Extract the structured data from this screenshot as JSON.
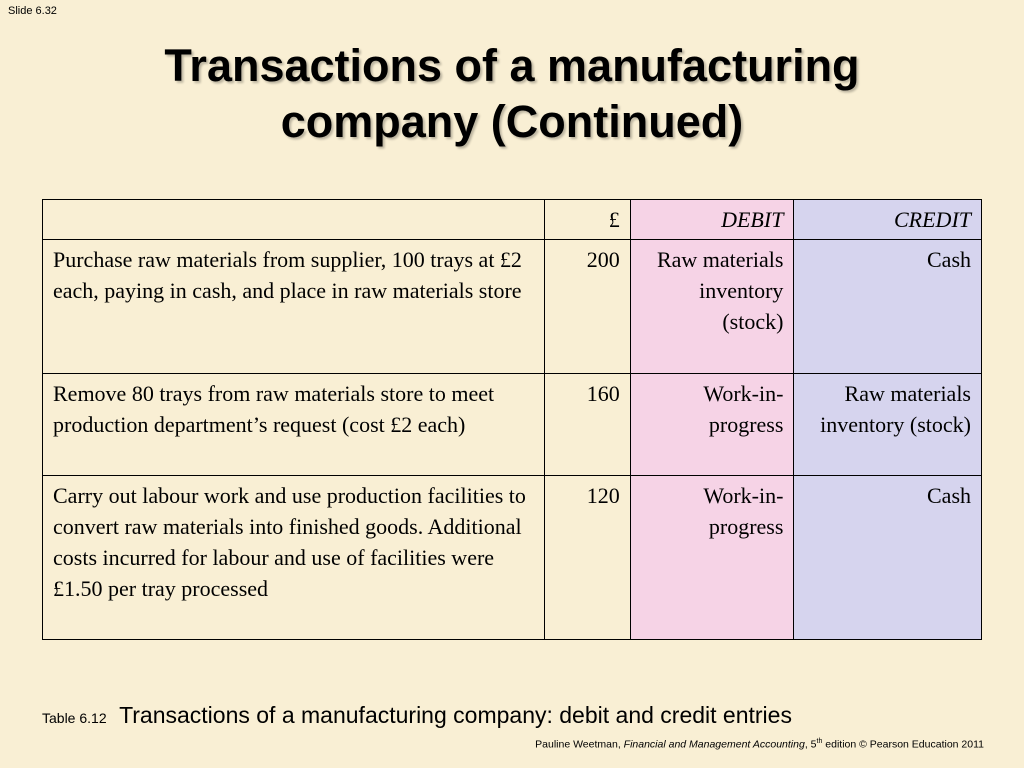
{
  "slide_number": "Slide 6.32",
  "title": {
    "line1": "Transactions of a manufacturing",
    "line2": "company (Continued)"
  },
  "table": {
    "headers": {
      "description": "",
      "amount": "£",
      "debit": "DEBIT",
      "credit": "CREDIT"
    },
    "rows": [
      {
        "description": "Purchase raw materials from supplier, 100 trays at £2 each,  paying in cash, and place in raw materials store",
        "amount": "200",
        "debit": "Raw materials inventory (stock)",
        "credit": "Cash"
      },
      {
        "description": "Remove 80 trays from raw materials store to meet production department’s request (cost £2 each)",
        "amount": "160",
        "debit": "Work-in-progress",
        "credit": "Raw materials inventory (stock)"
      },
      {
        "description": "Carry out labour work and use production facilities to convert raw materials into finished goods. Additional costs incurred for labour and use of facilities were £1.50 per tray processed",
        "amount": "120",
        "debit": "Work-in-progress",
        "credit": "Cash"
      }
    ]
  },
  "caption": {
    "label": "Table 6.12",
    "text": "Transactions of a manufacturing company: debit and credit entries"
  },
  "footer": {
    "author": "Pauline Weetman, ",
    "book": "Financial and Management Accounting",
    "edition_num": ", 5",
    "edition_sup": "th",
    "rest": " edition © Pearson Education 2011"
  },
  "colors": {
    "background": "#f9efd4",
    "debit_column": "#f6d3e6",
    "credit_column": "#d6d4ee"
  }
}
